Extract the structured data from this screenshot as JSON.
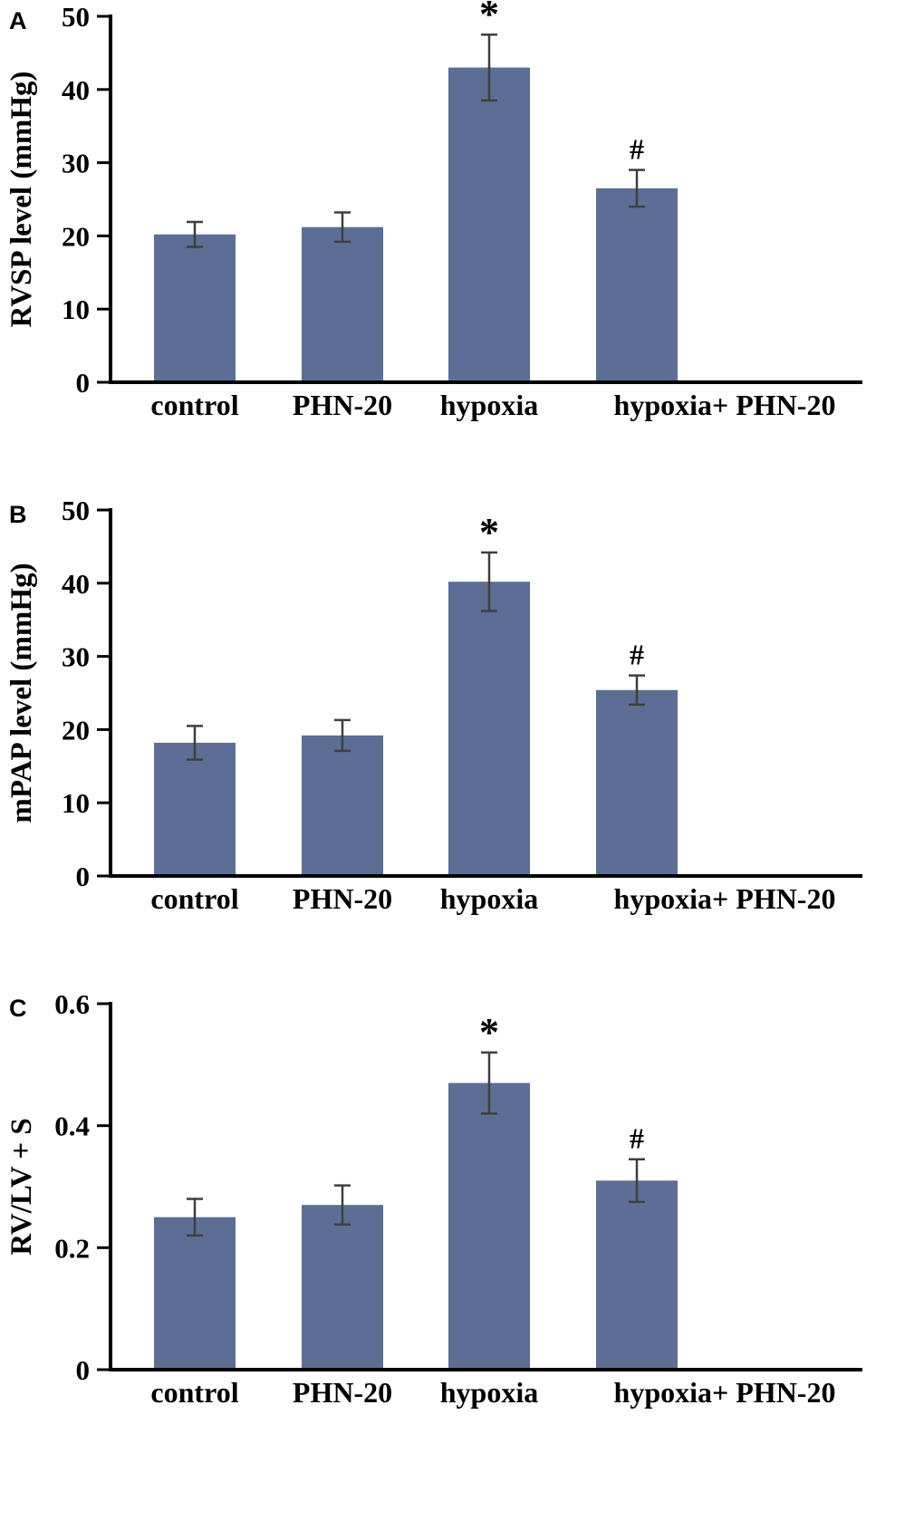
{
  "figure": {
    "bar_color": "#5c6e93",
    "error_color": "#3f3f3f",
    "axis_color": "#000000",
    "text_color": "#000000"
  },
  "chart_data": [
    {
      "type": "bar",
      "panel_label": "A",
      "ylabel": "RVSP level (mmHg)",
      "xlabel": "",
      "categories": [
        "control",
        "PHN-20",
        "hypoxia",
        "hypoxia+ PHN-20"
      ],
      "values": [
        20.2,
        21.2,
        43.0,
        26.5
      ],
      "errors": [
        1.7,
        2.0,
        4.5,
        2.5
      ],
      "annotations": [
        "",
        "",
        "*",
        "#"
      ],
      "ylim": [
        0,
        50
      ],
      "yticks": [
        0,
        10,
        20,
        30,
        40,
        50
      ],
      "grid": false,
      "legend": "none"
    },
    {
      "type": "bar",
      "panel_label": "B",
      "ylabel": "mPAP level (mmHg)",
      "xlabel": "",
      "categories": [
        "control",
        "PHN-20",
        "hypoxia",
        "hypoxia+ PHN-20"
      ],
      "values": [
        18.2,
        19.2,
        40.2,
        25.4
      ],
      "errors": [
        2.3,
        2.1,
        4.0,
        2.0
      ],
      "annotations": [
        "",
        "",
        "*",
        "#"
      ],
      "ylim": [
        0,
        50
      ],
      "yticks": [
        0,
        10,
        20,
        30,
        40,
        50
      ],
      "grid": false,
      "legend": "none"
    },
    {
      "type": "bar",
      "panel_label": "C",
      "ylabel": "RV/LV + S",
      "xlabel": "",
      "categories": [
        "control",
        "PHN-20",
        "hypoxia",
        "hypoxia+ PHN-20"
      ],
      "values": [
        0.25,
        0.27,
        0.47,
        0.31
      ],
      "errors": [
        0.03,
        0.032,
        0.05,
        0.035
      ],
      "annotations": [
        "",
        "",
        "*",
        "#"
      ],
      "ylim": [
        0,
        0.6
      ],
      "yticks": [
        0,
        0.2,
        0.4,
        0.6
      ],
      "grid": false,
      "legend": "none"
    }
  ]
}
